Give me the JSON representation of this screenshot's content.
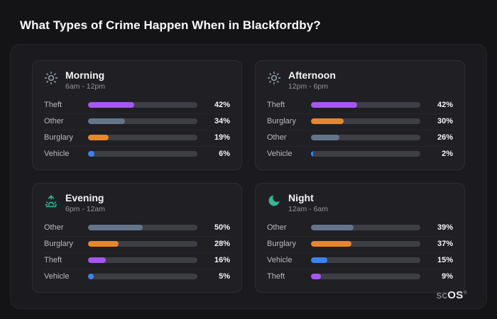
{
  "page": {
    "title": "What Types of Crime Happen When in Blackfordby?"
  },
  "brand": {
    "prefix": "sc",
    "suffix": "OS",
    "reg": "®"
  },
  "colors": {
    "background": "#141417",
    "panel": "#1b1b1f",
    "card": "#202024",
    "track": "#3e3e46",
    "theft": "#a855f7",
    "other": "#64748b",
    "burglary": "#e8862d",
    "vehicle": "#3b82f6",
    "icon_day": "#8a9aa4",
    "icon_night": "#35b597"
  },
  "chart_data": [
    {
      "type": "bar",
      "orientation": "horizontal",
      "id": "morning",
      "title": "Morning",
      "subtitle": "6am - 12pm",
      "icon": "sun-icon",
      "icon_color": "#8a9aa4",
      "categories": [
        "Theft",
        "Other",
        "Burglary",
        "Vehicle"
      ],
      "values": [
        42,
        34,
        19,
        6
      ],
      "value_labels": [
        "42%",
        "34%",
        "19%",
        "6%"
      ],
      "bar_colors": [
        "#a855f7",
        "#64748b",
        "#e8862d",
        "#3b82f6"
      ],
      "xlim": [
        0,
        100
      ]
    },
    {
      "type": "bar",
      "orientation": "horizontal",
      "id": "afternoon",
      "title": "Afternoon",
      "subtitle": "12pm - 6pm",
      "icon": "sun-icon",
      "icon_color": "#8a9aa4",
      "categories": [
        "Theft",
        "Burglary",
        "Other",
        "Vehicle"
      ],
      "values": [
        42,
        30,
        26,
        2
      ],
      "value_labels": [
        "42%",
        "30%",
        "26%",
        "2%"
      ],
      "bar_colors": [
        "#a855f7",
        "#e8862d",
        "#64748b",
        "#3b82f6"
      ],
      "xlim": [
        0,
        100
      ]
    },
    {
      "type": "bar",
      "orientation": "horizontal",
      "id": "evening",
      "title": "Evening",
      "subtitle": "6pm - 12am",
      "icon": "sunrise-icon",
      "icon_color": "#35b597",
      "categories": [
        "Other",
        "Burglary",
        "Theft",
        "Vehicle"
      ],
      "values": [
        50,
        28,
        16,
        5
      ],
      "value_labels": [
        "50%",
        "28%",
        "16%",
        "5%"
      ],
      "bar_colors": [
        "#64748b",
        "#e8862d",
        "#a855f7",
        "#3b82f6"
      ],
      "xlim": [
        0,
        100
      ]
    },
    {
      "type": "bar",
      "orientation": "horizontal",
      "id": "night",
      "title": "Night",
      "subtitle": "12am - 6am",
      "icon": "moon-icon",
      "icon_color": "#35b597",
      "categories": [
        "Other",
        "Burglary",
        "Vehicle",
        "Theft"
      ],
      "values": [
        39,
        37,
        15,
        9
      ],
      "value_labels": [
        "39%",
        "37%",
        "15%",
        "9%"
      ],
      "bar_colors": [
        "#64748b",
        "#e8862d",
        "#3b82f6",
        "#a855f7"
      ],
      "xlim": [
        0,
        100
      ]
    }
  ]
}
